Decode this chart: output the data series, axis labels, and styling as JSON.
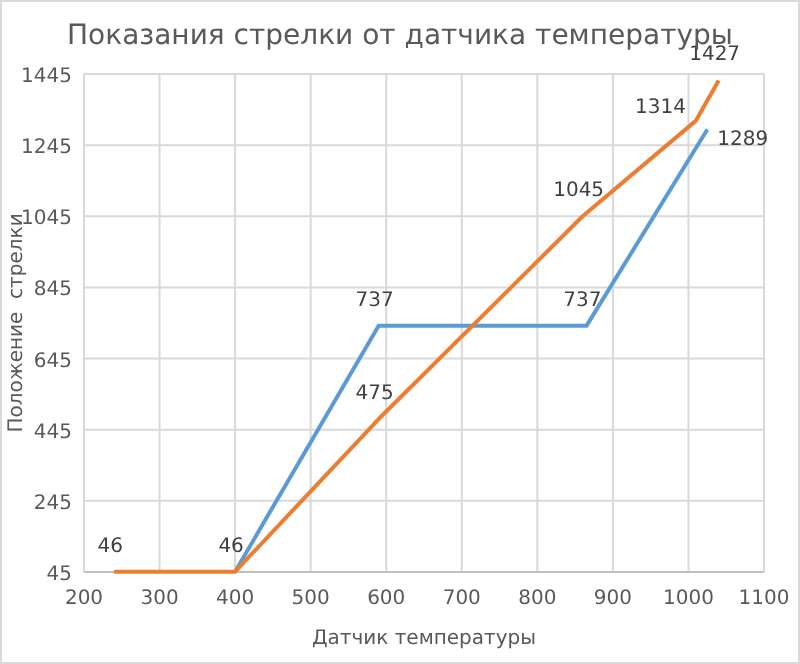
{
  "chart_data": {
    "type": "line",
    "title": "Показания стрелки от датчика температуры",
    "xlabel": "Датчик температуры",
    "ylabel": "Положение  стрелки",
    "xlim": [
      200,
      1100
    ],
    "xticks": [
      200,
      300,
      400,
      500,
      600,
      700,
      800,
      900,
      1000,
      1100
    ],
    "ylim": [
      45,
      1445
    ],
    "yticks": [
      45,
      245,
      445,
      645,
      845,
      1045,
      1245,
      1445
    ],
    "grid": true,
    "marker": "none",
    "series": [
      {
        "color": "#5b9bd5",
        "x": [
          400,
          590,
          865,
          1025
        ],
        "values": [
          46,
          737,
          737,
          1289
        ],
        "value_labels": [
          "46",
          "737",
          "737",
          "1289"
        ]
      },
      {
        "color": "#ed7d31",
        "x": [
          240,
          400,
          590,
          860,
          1010,
          1040
        ],
        "values": [
          46,
          46,
          475,
          1045,
          1314,
          1427
        ],
        "value_labels": [
          "46",
          null,
          "475",
          "1045",
          "1314",
          "1427"
        ]
      }
    ]
  }
}
